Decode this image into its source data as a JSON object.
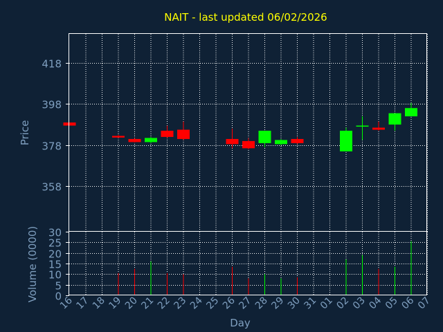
{
  "colors": {
    "background": "#0f2135",
    "plot_border": "#ffffff",
    "grid": "#ffffff",
    "title": "#ffff00",
    "axis_text": "#7f9fbf",
    "up": "#00ff00",
    "down": "#ff0000"
  },
  "chart_data": {
    "type": "candlestick",
    "title": "NAIT - last updated 06/02/2026",
    "xlabel": "Day",
    "grid": true,
    "x_categories": [
      "16",
      "17",
      "18",
      "19",
      "20",
      "21",
      "22",
      "23",
      "24",
      "25",
      "26",
      "27",
      "28",
      "29",
      "30",
      "31",
      "01",
      "02",
      "03",
      "04",
      "05",
      "06",
      "07"
    ],
    "price_panel": {
      "ylabel": "Price",
      "ylim": [
        336,
        432
      ],
      "yticks": [
        358,
        378,
        398,
        418
      ],
      "candles": [
        {
          "x": "16",
          "open": 389,
          "close": 387.5,
          "high": 389,
          "low": 387.5
        },
        {
          "x": "19",
          "open": 382.5,
          "close": 381.7,
          "high": 383,
          "low": 381.5
        },
        {
          "x": "20",
          "open": 381,
          "close": 379.5,
          "high": 381.5,
          "low": 379.3
        },
        {
          "x": "21",
          "open": 379.5,
          "close": 381.5,
          "high": 382,
          "low": 379
        },
        {
          "x": "22",
          "open": 385,
          "close": 382,
          "high": 387.5,
          "low": 381.5
        },
        {
          "x": "23",
          "open": 385.5,
          "close": 381,
          "high": 389.5,
          "low": 380.5
        },
        {
          "x": "26",
          "open": 381,
          "close": 378.5,
          "high": 386,
          "low": 376.5
        },
        {
          "x": "27",
          "open": 380,
          "close": 376.5,
          "high": 381.5,
          "low": 376
        },
        {
          "x": "28",
          "open": 379,
          "close": 385,
          "high": 385,
          "low": 377
        },
        {
          "x": "29",
          "open": 378.5,
          "close": 380.5,
          "high": 381,
          "low": 378
        },
        {
          "x": "30",
          "open": 381,
          "close": 379,
          "high": 382,
          "low": 378.5
        },
        {
          "x": "02",
          "open": 375,
          "close": 385,
          "high": 386.5,
          "low": 375
        },
        {
          "x": "03",
          "open": 387.5,
          "close": 387.5,
          "high": 392,
          "low": 380.5
        },
        {
          "x": "04",
          "open": 386.5,
          "close": 385.5,
          "high": 389.5,
          "low": 385
        },
        {
          "x": "05",
          "open": 388,
          "close": 393.5,
          "high": 393.5,
          "low": 385
        },
        {
          "x": "06",
          "open": 392,
          "close": 396,
          "high": 398.5,
          "low": 392
        }
      ]
    },
    "volume_panel": {
      "ylabel": "Volume (0000)",
      "ylim": [
        0,
        30
      ],
      "yticks": [
        0,
        5,
        10,
        15,
        20,
        25,
        30
      ],
      "bars": [
        {
          "x": "19",
          "value": 10.5,
          "dir": "down"
        },
        {
          "x": "20",
          "value": 12.5,
          "dir": "down"
        },
        {
          "x": "21",
          "value": 16,
          "dir": "up"
        },
        {
          "x": "22",
          "value": 10.5,
          "dir": "down"
        },
        {
          "x": "23",
          "value": 10,
          "dir": "down"
        },
        {
          "x": "26",
          "value": 13.5,
          "dir": "down"
        },
        {
          "x": "27",
          "value": 8,
          "dir": "down"
        },
        {
          "x": "28",
          "value": 10,
          "dir": "up"
        },
        {
          "x": "29",
          "value": 8,
          "dir": "up"
        },
        {
          "x": "30",
          "value": 8.5,
          "dir": "down"
        },
        {
          "x": "02",
          "value": 17,
          "dir": "up"
        },
        {
          "x": "03",
          "value": 19,
          "dir": "up"
        },
        {
          "x": "04",
          "value": 12.5,
          "dir": "down"
        },
        {
          "x": "05",
          "value": 13.5,
          "dir": "up"
        },
        {
          "x": "06",
          "value": 25.5,
          "dir": "up"
        }
      ]
    }
  }
}
